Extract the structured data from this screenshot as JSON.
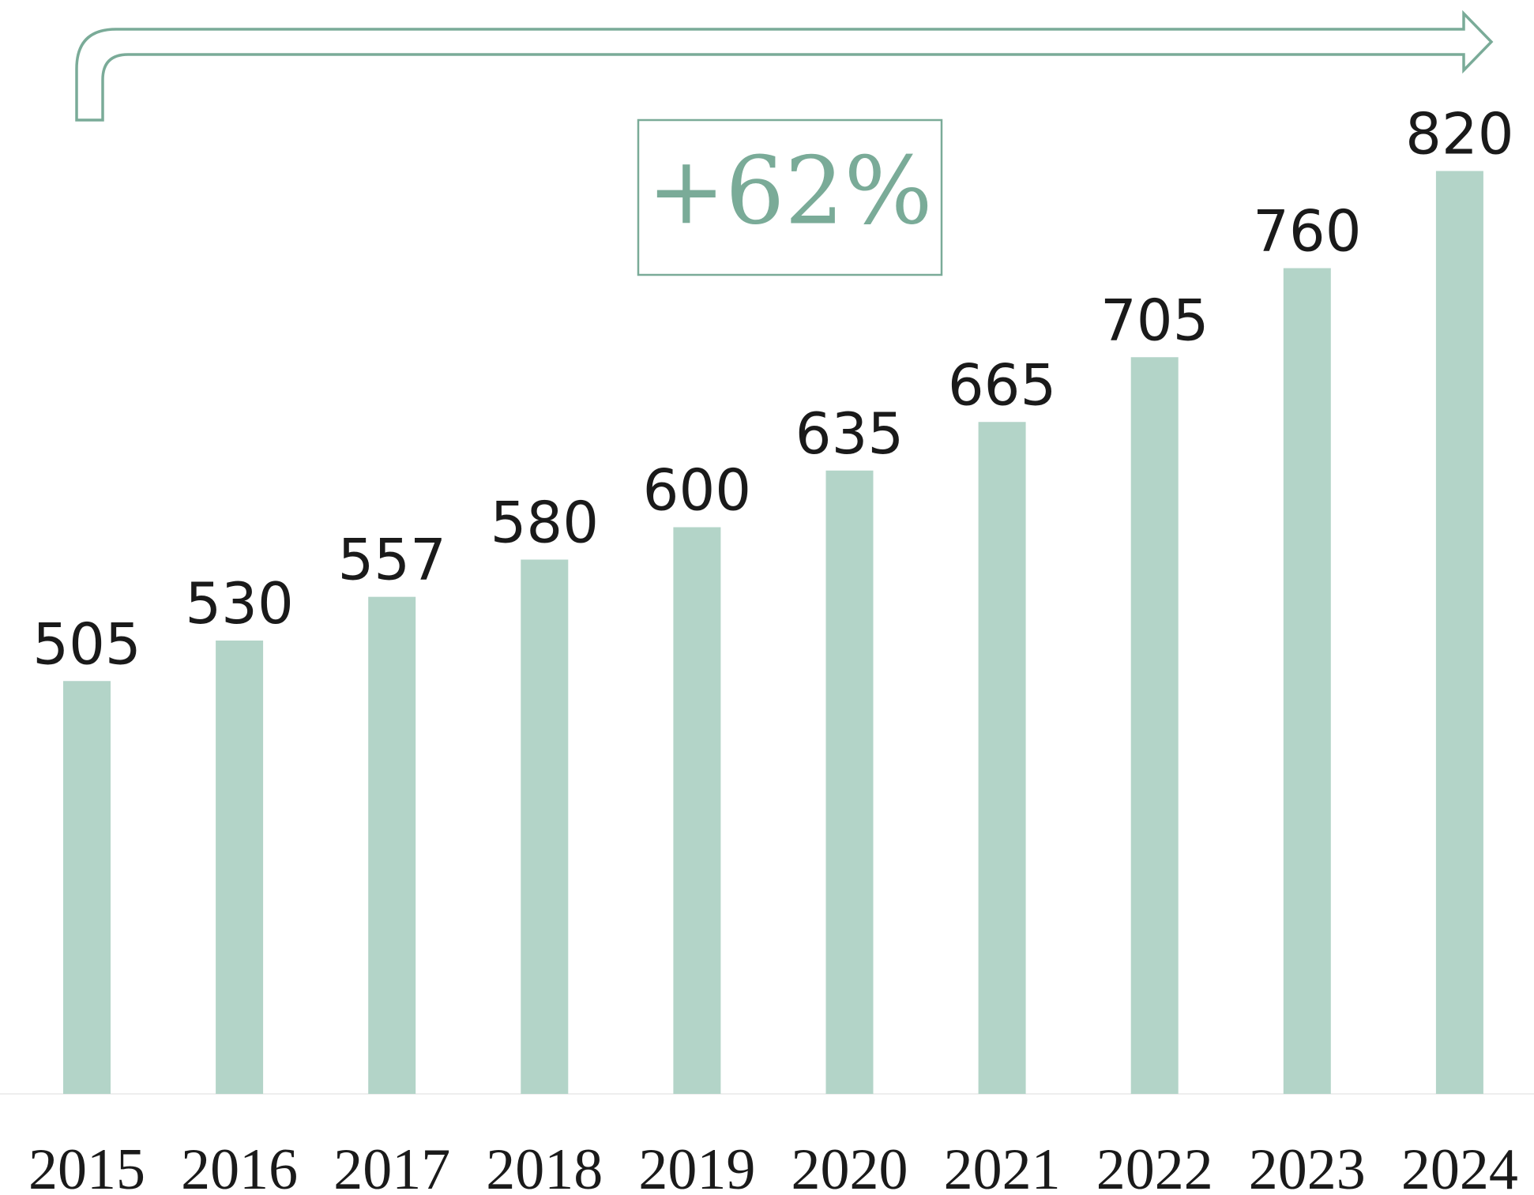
{
  "chart_data": {
    "type": "bar",
    "categories": [
      "2015",
      "2016",
      "2017",
      "2018",
      "2019",
      "2020",
      "2021",
      "2022",
      "2023",
      "2024"
    ],
    "values": [
      505,
      530,
      557,
      580,
      600,
      635,
      665,
      705,
      760,
      820
    ],
    "color": "#b3d4c8",
    "ylim": [
      250,
      850
    ],
    "annotation": "+62%",
    "annotation_color": "#7aab98"
  }
}
